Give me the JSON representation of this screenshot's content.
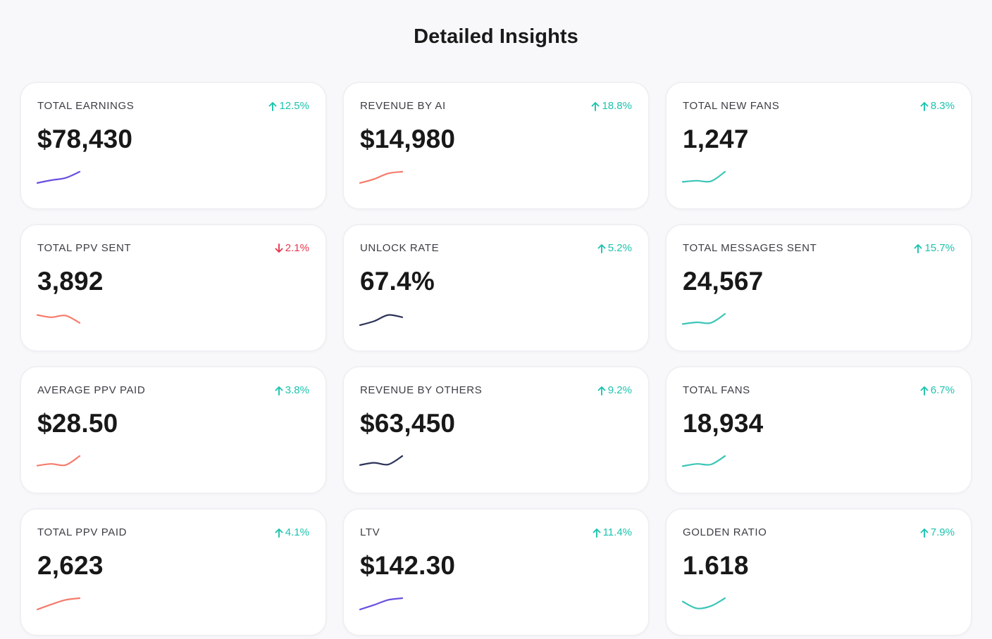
{
  "page": {
    "title": "Detailed Insights"
  },
  "colors": {
    "up": "#1cc4ad",
    "down": "#e5384e",
    "purple": "#6a4fe0",
    "salmon": "#f57b6b",
    "teal": "#3cc5b8",
    "navy": "#2c3358"
  },
  "cards": [
    {
      "label": "TOTAL EARNINGS",
      "value": "$78,430",
      "change": "12.5%",
      "direction": "up",
      "spark_color": "purple",
      "spark": [
        0,
        0.25,
        0.45,
        1.0
      ]
    },
    {
      "label": "REVENUE BY AI",
      "value": "$14,980",
      "change": "18.8%",
      "direction": "up",
      "spark_color": "salmon",
      "spark": [
        0,
        0.35,
        0.85,
        1.0
      ]
    },
    {
      "label": "TOTAL NEW FANS",
      "value": "1,247",
      "change": "8.3%",
      "direction": "up",
      "spark_color": "teal",
      "spark": [
        0.1,
        0.2,
        0.15,
        1.0
      ]
    },
    {
      "label": "TOTAL PPV SENT",
      "value": "3,892",
      "change": "2.1%",
      "direction": "down",
      "spark_color": "salmon",
      "spark": [
        0.9,
        0.7,
        0.85,
        0.2
      ]
    },
    {
      "label": "UNLOCK RATE",
      "value": "67.4%",
      "change": "5.2%",
      "direction": "up",
      "spark_color": "navy",
      "spark": [
        0,
        0.35,
        0.9,
        0.7
      ]
    },
    {
      "label": "TOTAL MESSAGES SENT",
      "value": "24,567",
      "change": "15.7%",
      "direction": "up",
      "spark_color": "teal",
      "spark": [
        0.1,
        0.25,
        0.2,
        1.0
      ]
    },
    {
      "label": "AVERAGE PPV PAID",
      "value": "$28.50",
      "change": "3.8%",
      "direction": "up",
      "spark_color": "salmon",
      "spark": [
        0.15,
        0.3,
        0.2,
        1.0
      ]
    },
    {
      "label": "REVENUE BY OTHERS",
      "value": "$63,450",
      "change": "9.2%",
      "direction": "up",
      "spark_color": "navy",
      "spark": [
        0.2,
        0.4,
        0.25,
        1.0
      ]
    },
    {
      "label": "TOTAL FANS",
      "value": "18,934",
      "change": "6.7%",
      "direction": "up",
      "spark_color": "teal",
      "spark": [
        0.1,
        0.3,
        0.25,
        1.0
      ]
    },
    {
      "label": "TOTAL PPV PAID",
      "value": "2,623",
      "change": "4.1%",
      "direction": "up",
      "spark_color": "salmon",
      "spark": [
        0,
        0.45,
        0.85,
        1.0
      ]
    },
    {
      "label": "LTV",
      "value": "$142.30",
      "change": "11.4%",
      "direction": "up",
      "spark_color": "purple",
      "spark": [
        0,
        0.4,
        0.85,
        1.0
      ]
    },
    {
      "label": "GOLDEN RATIO",
      "value": "1.618",
      "change": "7.9%",
      "direction": "up",
      "spark_color": "teal",
      "spark": [
        0.7,
        0.1,
        0.3,
        1.0
      ]
    }
  ]
}
